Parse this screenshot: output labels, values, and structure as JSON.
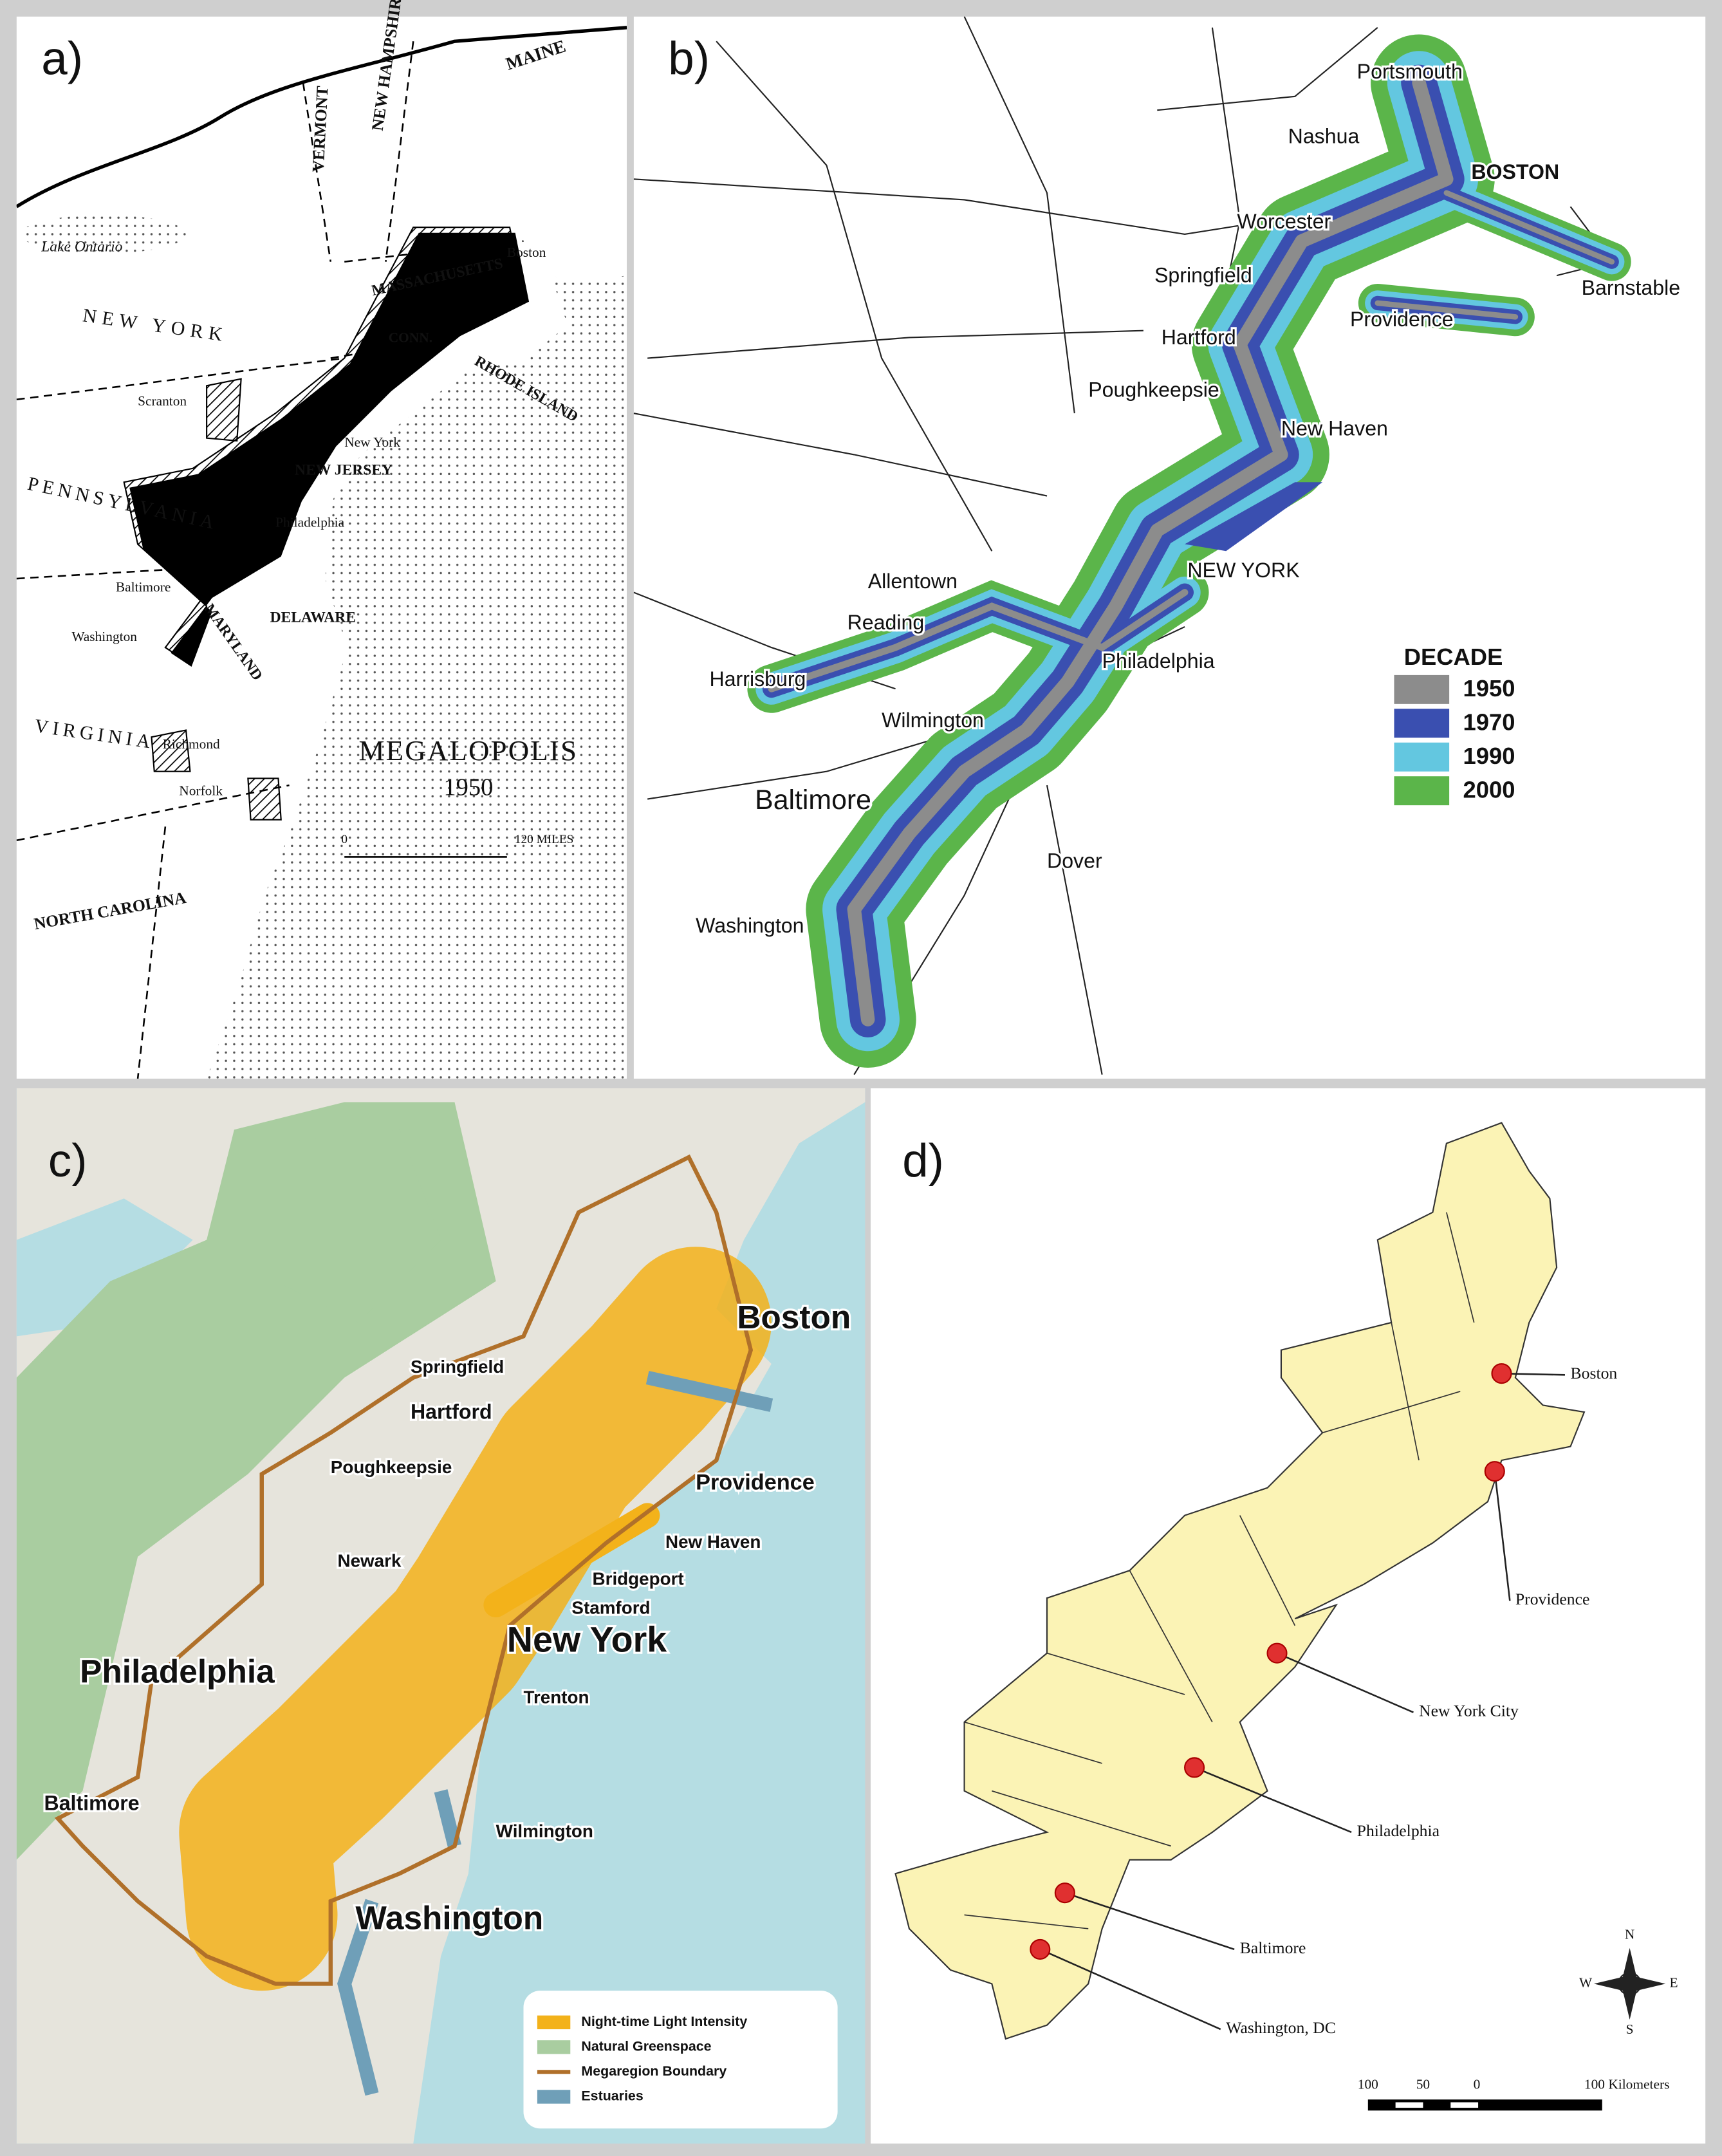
{
  "panel_a": {
    "label": "a)",
    "places": [
      "MAINE",
      "VERMONT",
      "NEW HAMPSHIRE",
      "Lake Ontario",
      "NEW YORK",
      "MASSACHUSETTS",
      "Boston",
      "CONN.",
      "RHODE ISLAND",
      "Scranton",
      "PENNSYLVANIA",
      "New York",
      "NEW JERSEY",
      "Philadelphia",
      "Baltimore",
      "DELAWARE",
      "Washington",
      "MARYLAND",
      "VIRGINIA",
      "Richmond",
      "Norfolk",
      "NORTH CAROLINA"
    ],
    "title": "MEGALOPOLIS",
    "year": "1950",
    "scale": [
      "0",
      "120 MILES"
    ]
  },
  "panel_b": {
    "label": "b)",
    "places": [
      "Portsmouth",
      "Nashua",
      "BOSTON",
      "Worcester",
      "Springfield",
      "Barnstable",
      "Providence",
      "Hartford",
      "Poughkeepsie",
      "New Haven",
      "NEW YORK",
      "Allentown",
      "Reading",
      "Philadelphia",
      "Harrisburg",
      "Wilmington",
      "Baltimore",
      "Dover",
      "Washington"
    ],
    "legend": {
      "title": "DECADE",
      "items": [
        {
          "name": "1950",
          "color": "#8c8c8c"
        },
        {
          "name": "1970",
          "color": "#3a4fb0"
        },
        {
          "name": "1990",
          "color": "#63c7e0"
        },
        {
          "name": "2000",
          "color": "#5bb54a"
        }
      ]
    }
  },
  "panel_c": {
    "label": "c)",
    "places": [
      "Boston",
      "Springfield",
      "Hartford",
      "Poughkeepsie",
      "Providence",
      "New Haven",
      "Newark",
      "Bridgeport",
      "Stamford",
      "New York",
      "Philadelphia",
      "Trenton",
      "Wilmington",
      "Baltimore",
      "Washington"
    ],
    "legend": [
      {
        "name": "Night-time Light Intensity",
        "color": "#f3b21a"
      },
      {
        "name": "Natural Greenspace",
        "color": "#a9cda0"
      },
      {
        "name": "Megaregion Boundary",
        "color": "#b0702a"
      },
      {
        "name": "Estuaries",
        "color": "#6f9fb8"
      }
    ]
  },
  "panel_d": {
    "label": "d)",
    "cities": [
      "Boston",
      "Providence",
      "New York City",
      "Philadelphia",
      "Baltimore",
      "Washington, DC"
    ],
    "compass": [
      "N",
      "E",
      "S",
      "W"
    ],
    "scale": [
      "100",
      "50",
      "0",
      "100 Kilometers"
    ]
  }
}
